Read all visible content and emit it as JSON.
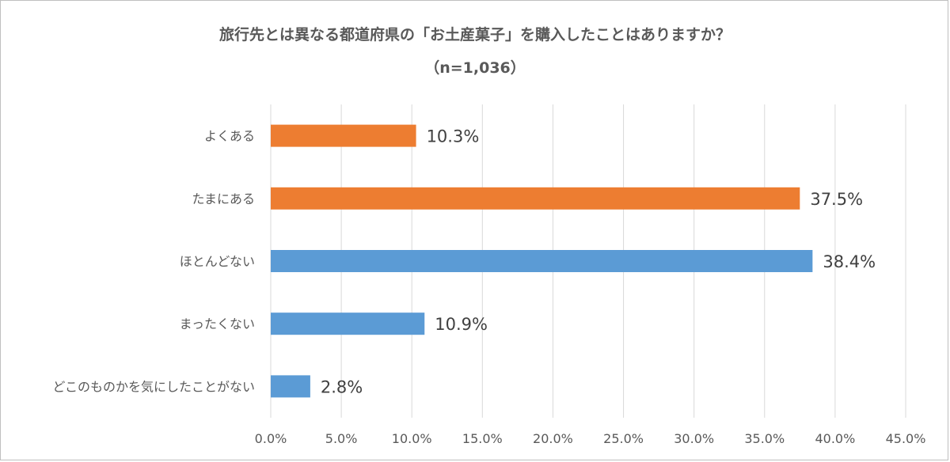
{
  "chart_data": {
    "type": "bar",
    "orientation": "horizontal",
    "title": "旅行先とは異なる都道府県の「お土産菓子」を購入したことはありますか？",
    "subtitle": "（n=1,036）",
    "categories": [
      "よくある",
      "たまにある",
      "ほとんどない",
      "まったくない",
      "どこのものかを気にしたことがない"
    ],
    "values": [
      10.3,
      37.5,
      38.4,
      10.9,
      2.8
    ],
    "value_labels": [
      "10.3%",
      "37.5%",
      "38.4%",
      "10.9%",
      "2.8%"
    ],
    "bar_colors": [
      "#ed7d31",
      "#ed7d31",
      "#5b9bd5",
      "#5b9bd5",
      "#5b9bd5"
    ],
    "xlim": [
      0,
      45
    ],
    "xticks": [
      0,
      5,
      10,
      15,
      20,
      25,
      30,
      35,
      40,
      45
    ],
    "xtick_labels": [
      "0.0%",
      "5.0%",
      "10.0%",
      "15.0%",
      "20.0%",
      "25.0%",
      "30.0%",
      "35.0%",
      "40.0%",
      "45.0%"
    ],
    "grid": true,
    "legend": "none"
  }
}
